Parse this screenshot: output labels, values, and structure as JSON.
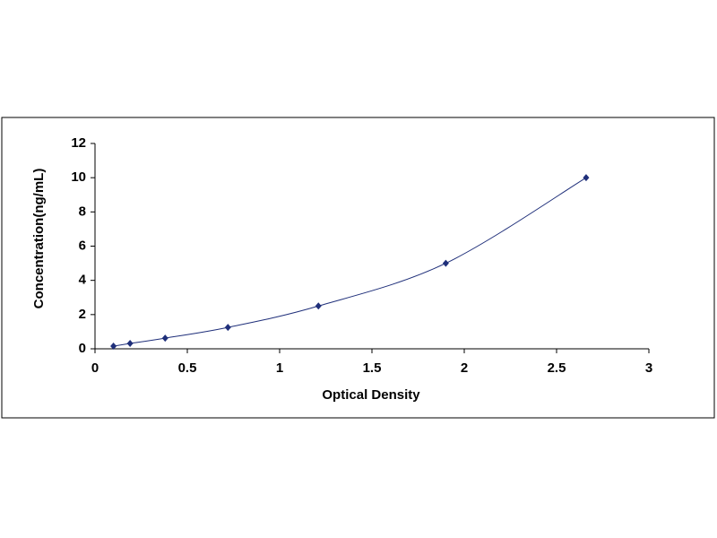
{
  "chart_data": {
    "type": "scatter",
    "x_label": "Optical Density",
    "y_label": "Concentration(ng/mL)",
    "x": [
      0.1,
      0.19,
      0.38,
      0.72,
      1.21,
      1.9,
      2.66
    ],
    "values": [
      0.156,
      0.312,
      0.625,
      1.25,
      2.5,
      5,
      10
    ],
    "color": "#1f2f7a",
    "line_color": "#1f2f7a",
    "smooth_line": true,
    "xlim": [
      0,
      3
    ],
    "xticks": [
      0,
      0.5,
      1,
      1.5,
      2,
      2.5,
      3
    ],
    "ylim": [
      0,
      12
    ],
    "yticks": [
      0,
      2,
      4,
      6,
      8,
      10,
      12
    ],
    "grid": false
  }
}
